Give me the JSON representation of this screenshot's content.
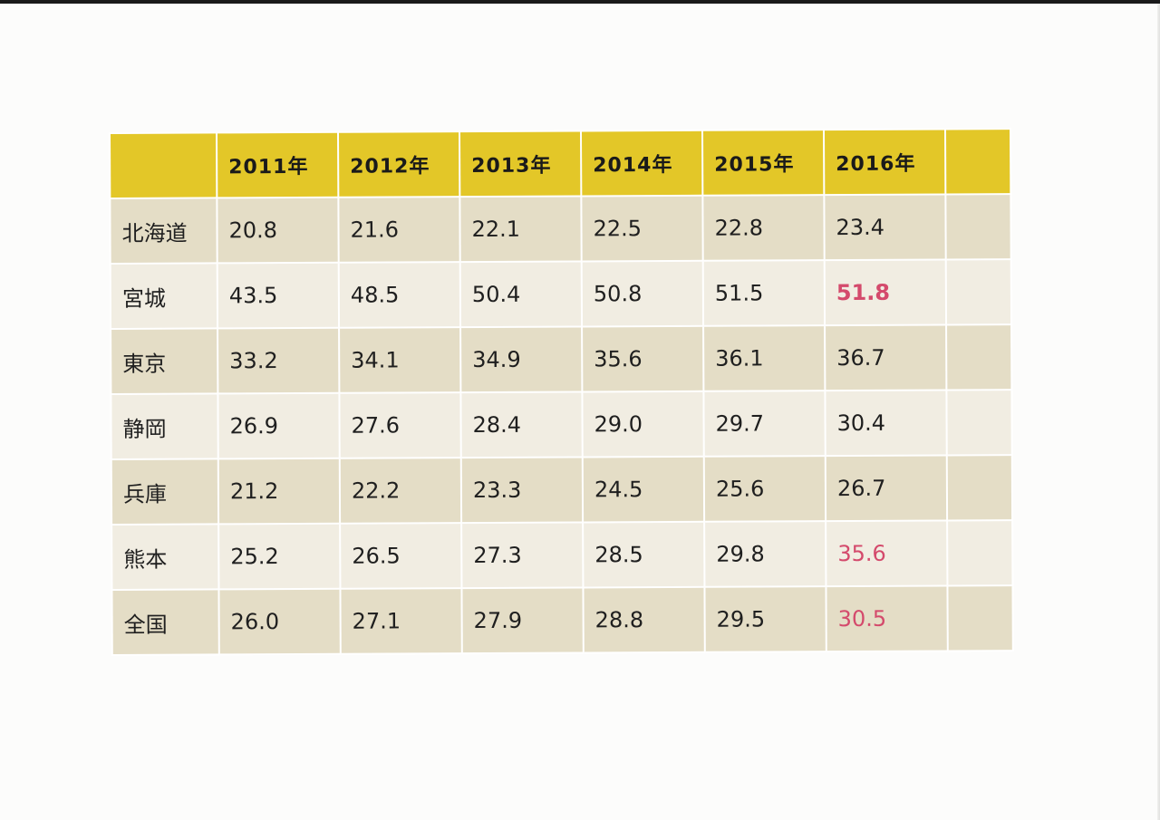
{
  "table": {
    "header": {
      "corner": "",
      "years": [
        "2011年",
        "2012年",
        "2013年",
        "2014年",
        "2015年",
        "2016年"
      ],
      "extra": ""
    },
    "rows": [
      {
        "label": "北海道",
        "values": [
          "20.8",
          "21.6",
          "22.1",
          "22.5",
          "22.8",
          "23.4"
        ],
        "shade": "dark",
        "highlight": "",
        "highlight_bold": false
      },
      {
        "label": "宮城",
        "values": [
          "43.5",
          "48.5",
          "50.4",
          "50.8",
          "51.5",
          "51.8"
        ],
        "shade": "light",
        "highlight": "#d44a6c",
        "highlight_bold": true
      },
      {
        "label": "東京",
        "values": [
          "33.2",
          "34.1",
          "34.9",
          "35.6",
          "36.1",
          "36.7"
        ],
        "shade": "dark",
        "highlight": "",
        "highlight_bold": false
      },
      {
        "label": "静岡",
        "values": [
          "26.9",
          "27.6",
          "28.4",
          "29.0",
          "29.7",
          "30.4"
        ],
        "shade": "light",
        "highlight": "",
        "highlight_bold": false
      },
      {
        "label": "兵庫",
        "values": [
          "21.2",
          "22.2",
          "23.3",
          "24.5",
          "25.6",
          "26.7"
        ],
        "shade": "dark",
        "highlight": "",
        "highlight_bold": false
      },
      {
        "label": "熊本",
        "values": [
          "25.2",
          "26.5",
          "27.3",
          "28.5",
          "29.8",
          "35.6"
        ],
        "shade": "light",
        "highlight": "#d44a6c",
        "highlight_bold": false
      },
      {
        "label": "全国",
        "values": [
          "26.0",
          "27.1",
          "27.9",
          "28.8",
          "29.5",
          "30.5"
        ],
        "shade": "dark",
        "highlight": "#d44a6c",
        "highlight_bold": false
      }
    ]
  },
  "colors": {
    "header_bg": "#e3c728",
    "row_dark": "#e4ddc6",
    "row_light": "#f1ede2",
    "highlight_red": "#d44a6c"
  }
}
